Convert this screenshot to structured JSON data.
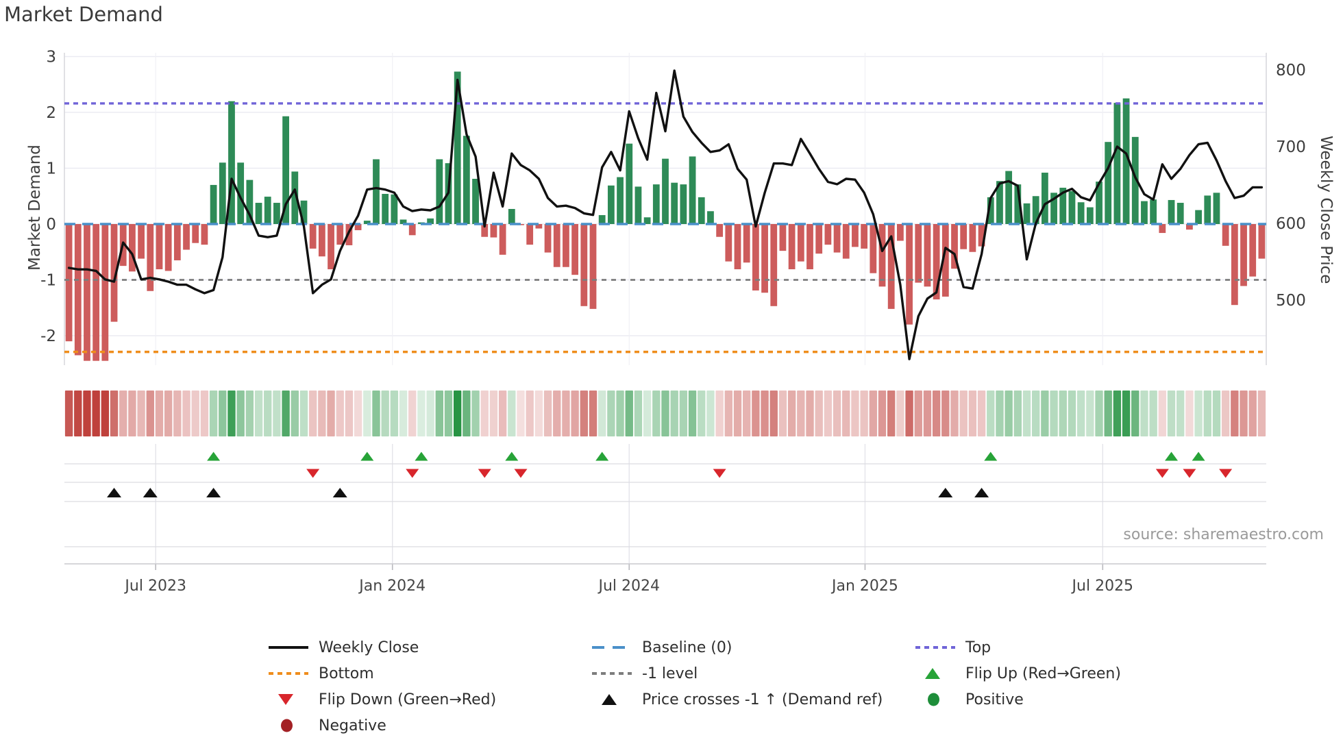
{
  "chart_data": {
    "type": "bar+line",
    "title": "Market Demand",
    "left_axis_label": "Market Demand",
    "right_axis_label": "Weekly Close Price",
    "source": "source: sharemaestro.com",
    "axes": {
      "left_ticks": [
        {
          "value": 3,
          "label": "3"
        },
        {
          "value": 2,
          "label": "2"
        },
        {
          "value": 1,
          "label": "1"
        },
        {
          "value": 0,
          "label": "0"
        },
        {
          "value": -1,
          "label": "-1"
        },
        {
          "value": -2,
          "label": "-2"
        }
      ],
      "right_ticks": [
        {
          "value": 800,
          "label": "800"
        },
        {
          "value": 700,
          "label": "700"
        },
        {
          "value": 600,
          "label": "600"
        },
        {
          "value": 500,
          "label": "500"
        }
      ],
      "x_ticks": [
        {
          "label": "Jul 2023",
          "week": 9.6
        },
        {
          "label": "Jan 2024",
          "week": 35.8
        },
        {
          "label": "Jul 2024",
          "week": 62.0
        },
        {
          "label": "Jan 2025",
          "week": 88.1
        },
        {
          "label": "Jul 2025",
          "week": 114.4
        }
      ],
      "demand_ylim": [
        -2.78,
        3.08
      ],
      "grid": true
    },
    "ref_lines": {
      "baseline": {
        "label": "Baseline (0)",
        "value": 0,
        "color": "#4a90c9",
        "style": "dashed"
      },
      "top": {
        "label": "Top",
        "value": 2.16,
        "color": "#7064d8",
        "style": "dotted"
      },
      "bottom": {
        "label": "Bottom",
        "value": -2.29,
        "color": "#ef8d1c",
        "style": "dotted"
      },
      "minus1": {
        "label": "-1 level",
        "value": -1,
        "color": "#7d7d7d",
        "style": "dotted"
      }
    },
    "series": {
      "demand_name": "Market Demand",
      "price_name": "Weekly Close",
      "demand": [
        -2.1,
        -2.35,
        -2.45,
        -2.45,
        -2.45,
        -1.75,
        -0.75,
        -0.85,
        -0.62,
        -1.2,
        -0.81,
        -0.84,
        -0.65,
        -0.46,
        -0.34,
        -0.37,
        0.7,
        1.1,
        2.2,
        1.1,
        0.79,
        0.38,
        0.49,
        0.38,
        1.93,
        0.94,
        0.42,
        -0.44,
        -0.58,
        -0.81,
        -0.37,
        -0.38,
        -0.11,
        0.06,
        1.16,
        0.54,
        0.53,
        0.08,
        -0.2,
        0.03,
        0.1,
        1.16,
        1.09,
        2.73,
        1.58,
        0.81,
        -0.23,
        -0.24,
        -0.55,
        0.27,
        -0.02,
        -0.37,
        -0.08,
        -0.51,
        -0.77,
        -0.77,
        -0.91,
        -1.47,
        -1.52,
        0.16,
        0.69,
        0.84,
        1.44,
        0.67,
        0.12,
        0.71,
        1.17,
        0.74,
        0.71,
        1.21,
        0.48,
        0.23,
        -0.23,
        -0.67,
        -0.81,
        -0.69,
        -1.19,
        -1.23,
        -1.47,
        -0.48,
        -0.81,
        -0.67,
        -0.81,
        -0.53,
        -0.37,
        -0.51,
        -0.62,
        -0.41,
        -0.44,
        -0.88,
        -1.12,
        -1.52,
        -0.3,
        -1.8,
        -1.05,
        -1.12,
        -1.35,
        -1.3,
        -0.8,
        -0.45,
        -0.5,
        -0.4,
        0.48,
        0.77,
        0.95,
        0.71,
        0.37,
        0.5,
        0.92,
        0.56,
        0.65,
        0.59,
        0.39,
        0.3,
        0.76,
        1.47,
        2.17,
        2.25,
        1.56,
        0.41,
        0.44,
        -0.16,
        0.43,
        0.38,
        -0.1,
        0.25,
        0.51,
        0.56,
        -0.39,
        -1.45,
        -1.11,
        -0.94,
        -0.62
      ],
      "price": [
        542,
        540,
        540,
        538,
        527,
        524,
        575,
        560,
        527,
        529,
        527,
        524,
        520,
        520,
        514,
        509,
        513,
        556,
        658,
        633,
        611,
        584,
        582,
        584,
        625,
        644,
        596,
        509,
        520,
        527,
        564,
        589,
        610,
        644,
        646,
        644,
        640,
        622,
        616,
        618,
        617,
        622,
        640,
        787,
        716,
        687,
        596,
        666,
        622,
        691,
        676,
        669,
        658,
        633,
        622,
        623,
        620,
        613,
        611,
        673,
        693,
        669,
        746,
        711,
        683,
        770,
        720,
        799,
        739,
        719,
        705,
        693,
        695,
        703,
        671,
        657,
        596,
        640,
        678,
        678,
        676,
        710,
        691,
        671,
        654,
        651,
        658,
        657,
        640,
        612,
        564,
        583,
        520,
        423,
        479,
        502,
        510,
        568,
        560,
        517,
        515,
        560,
        633,
        652,
        655,
        649,
        553,
        600,
        625,
        632,
        640,
        645,
        634,
        630,
        652,
        672,
        700,
        691,
        660,
        638,
        631,
        677,
        658,
        671,
        689,
        703,
        705,
        682,
        655,
        633,
        636,
        647,
        647
      ]
    },
    "markers": {
      "flip_up_weeks": [
        16,
        33,
        39,
        49,
        59,
        102,
        122,
        125
      ],
      "flip_down_weeks": [
        27,
        38,
        46,
        50,
        72,
        121,
        124,
        128
      ],
      "price_cross_weeks": [
        5,
        9,
        16,
        30,
        97,
        101
      ]
    },
    "colors": {
      "bar_positive": "#2e8b57",
      "bar_negative": "#cd5c5c",
      "price_line": "#111111",
      "flip_up": "#27a338",
      "flip_down": "#d8262c",
      "price_cross": "#111111",
      "positive_dot": "#1e8e3a",
      "negative_dot": "#a32125"
    }
  },
  "legend": {
    "items": [
      {
        "label": "Weekly Close",
        "marker": "line",
        "color": "#111111",
        "col": 1
      },
      {
        "label": "Bottom",
        "marker": "dots",
        "color": "#ef8d1c",
        "col": 1
      },
      {
        "label": "Flip Down (Green→Red)",
        "marker": "tri-down",
        "color": "#d8262c",
        "col": 1
      },
      {
        "label": "Negative",
        "marker": "dot",
        "color": "#a32125",
        "col": 1
      },
      {
        "label": "Baseline (0)",
        "marker": "dashes",
        "color": "#4a90c9",
        "col": 2
      },
      {
        "label": "-1 level",
        "marker": "dots",
        "color": "#7d7d7d",
        "col": 2
      },
      {
        "label": "Price crosses -1 ↑ (Demand ref)",
        "marker": "tri-up",
        "color": "#111111",
        "col": 2
      },
      {
        "label": "Top",
        "marker": "dots",
        "color": "#7064d8",
        "col": 3
      },
      {
        "label": "Flip Up (Red→Green)",
        "marker": "tri-up",
        "color": "#27a338",
        "col": 3
      },
      {
        "label": "Positive",
        "marker": "dot",
        "color": "#1e8e3a",
        "col": 3
      }
    ]
  }
}
